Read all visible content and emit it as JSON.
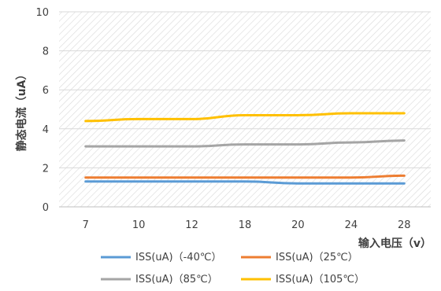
{
  "chart_data": {
    "type": "line",
    "title": "",
    "xlabel": "输入电压（v）",
    "ylabel": "静态电流（uA）",
    "categories": [
      "7",
      "10",
      "12",
      "18",
      "20",
      "24",
      "28"
    ],
    "ylim": [
      0,
      10
    ],
    "yticks": [
      0,
      2,
      4,
      6,
      8,
      10
    ],
    "grid": "horizontal",
    "legend_position": "bottom",
    "series": [
      {
        "name": "ISS(uA)（-40℃）",
        "color": "#5b9bd5",
        "values": [
          1.3,
          1.3,
          1.3,
          1.3,
          1.2,
          1.2,
          1.2
        ]
      },
      {
        "name": "ISS(uA)（25℃）",
        "color": "#ed7d31",
        "values": [
          1.5,
          1.5,
          1.5,
          1.5,
          1.5,
          1.5,
          1.6
        ]
      },
      {
        "name": "ISS(uA)（85℃）",
        "color": "#a5a5a5",
        "values": [
          3.1,
          3.1,
          3.1,
          3.2,
          3.2,
          3.3,
          3.4
        ]
      },
      {
        "name": "ISS(uA)（105℃）",
        "color": "#ffc000",
        "values": [
          4.4,
          4.5,
          4.5,
          4.7,
          4.7,
          4.8,
          4.8
        ]
      }
    ]
  }
}
